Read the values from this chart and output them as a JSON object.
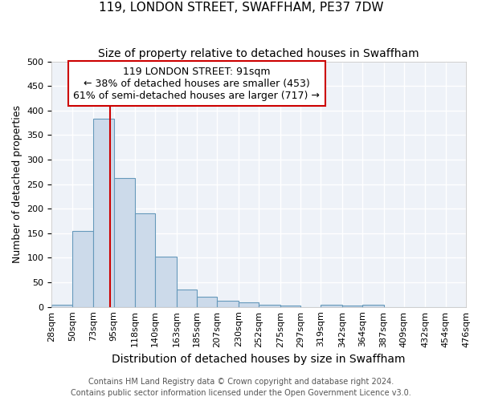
{
  "title1": "119, LONDON STREET, SWAFFHAM, PE37 7DW",
  "title2": "Size of property relative to detached houses in Swaffham",
  "xlabel": "Distribution of detached houses by size in Swaffham",
  "ylabel": "Number of detached properties",
  "footnote1": "Contains HM Land Registry data © Crown copyright and database right 2024.",
  "footnote2": "Contains public sector information licensed under the Open Government Licence v3.0.",
  "bin_labels": [
    "28sqm",
    "50sqm",
    "73sqm",
    "95sqm",
    "118sqm",
    "140sqm",
    "163sqm",
    "185sqm",
    "207sqm",
    "230sqm",
    "252sqm",
    "275sqm",
    "297sqm",
    "319sqm",
    "342sqm",
    "364sqm",
    "387sqm",
    "409sqm",
    "432sqm",
    "454sqm",
    "476sqm"
  ],
  "bar_heights": [
    5,
    155,
    383,
    263,
    190,
    102,
    36,
    21,
    12,
    9,
    5,
    3,
    0,
    5,
    3,
    5,
    0,
    0,
    0,
    0
  ],
  "bar_color": "#ccdaea",
  "bar_edge_color": "#6699bb",
  "property_size": 91,
  "bin_edges_numeric": [
    28,
    50,
    73,
    95,
    118,
    140,
    163,
    185,
    207,
    230,
    252,
    275,
    297,
    319,
    342,
    364,
    387,
    409,
    432,
    454,
    476
  ],
  "annotation_line1": "119 LONDON STREET: 91sqm",
  "annotation_line2": "← 38% of detached houses are smaller (453)",
  "annotation_line3": "61% of semi-detached houses are larger (717) →",
  "annotation_box_color": "#ffffff",
  "annotation_box_edge_color": "#cc0000",
  "red_line_color": "#cc0000",
  "ylim": [
    0,
    500
  ],
  "yticks": [
    0,
    50,
    100,
    150,
    200,
    250,
    300,
    350,
    400,
    450,
    500
  ],
  "plot_bg_color": "#eef2f8",
  "fig_bg_color": "#ffffff",
  "grid_color": "#ffffff",
  "title1_fontsize": 11,
  "title2_fontsize": 10,
  "xlabel_fontsize": 10,
  "ylabel_fontsize": 9,
  "tick_fontsize": 8,
  "annotation_fontsize": 9,
  "footnote_fontsize": 7
}
